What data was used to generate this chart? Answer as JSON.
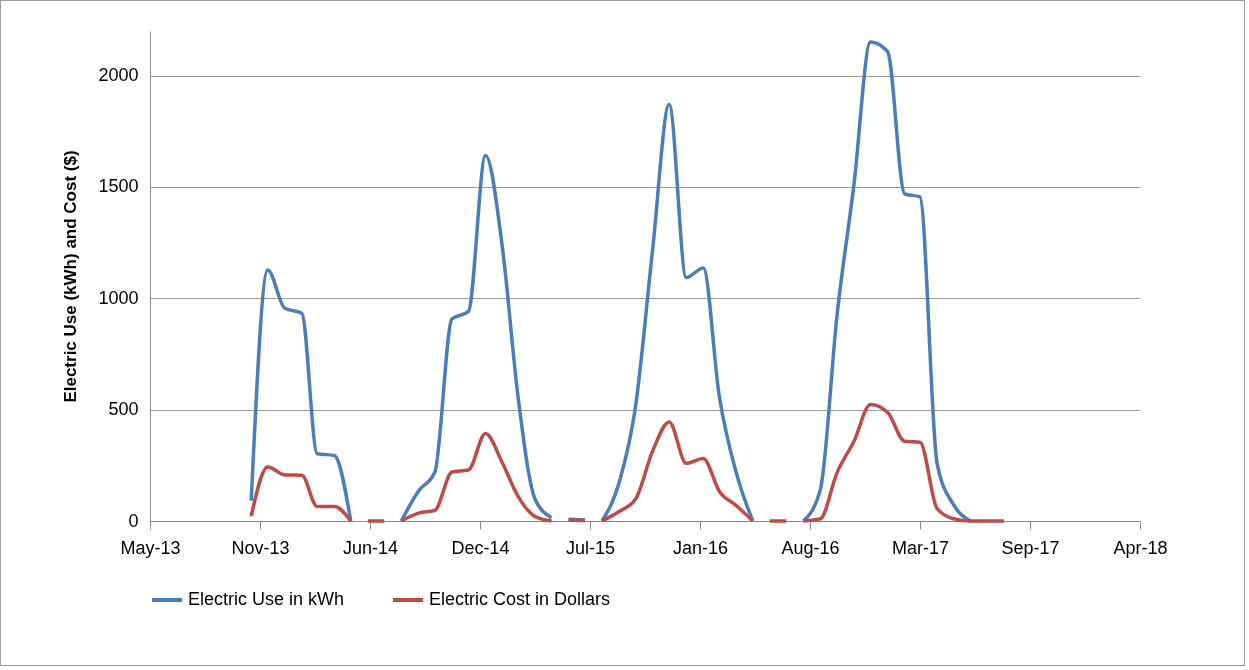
{
  "chart_data": {
    "type": "line",
    "ylabel": "Electric Use (kWh) and Cost ($)",
    "x": [
      "2013-11-01",
      "2013-12-01",
      "2014-01-01",
      "2014-02-01",
      "2014-03-01",
      "2014-04-01",
      "2014-05-01",
      "2014-05-16",
      "2014-06-01",
      "2014-07-01",
      "2014-07-16",
      "2014-08-01",
      "2014-09-01",
      "2014-10-01",
      "2014-11-01",
      "2014-12-01",
      "2015-01-01",
      "2015-02-01",
      "2015-03-01",
      "2015-04-01",
      "2015-05-01",
      "2015-05-16",
      "2015-06-01",
      "2015-07-01",
      "2015-07-16",
      "2015-08-01",
      "2015-09-01",
      "2015-10-01",
      "2015-11-01",
      "2015-12-01",
      "2016-01-01",
      "2016-02-01",
      "2016-03-01",
      "2016-04-01",
      "2016-05-01",
      "2016-05-16",
      "2016-06-01",
      "2016-07-01",
      "2016-07-16",
      "2016-08-01",
      "2016-09-01",
      "2016-10-01",
      "2016-11-01",
      "2016-12-01",
      "2017-01-01",
      "2017-02-01",
      "2017-03-01",
      "2017-04-01",
      "2017-05-01",
      "2017-06-01",
      "2017-07-01",
      "2017-08-01"
    ],
    "series": [
      {
        "name": "Electric Use in kWh",
        "color": "#4a7ebb",
        "values": [
          91,
          1127,
          955,
          933,
          302,
          294,
          0,
          null,
          null,
          null,
          null,
          0,
          134,
          220,
          907,
          941,
          1641,
          1222,
          561,
          99,
          15,
          null,
          8,
          5,
          null,
          0,
          173,
          518,
          1222,
          1870,
          1093,
          1136,
          561,
          216,
          0,
          null,
          null,
          null,
          null,
          0,
          143,
          920,
          1512,
          2151,
          2108,
          1469,
          1455,
          260,
          73,
          0,
          null,
          null
        ]
      },
      {
        "name": "Electric Cost in Dollars",
        "color": "#be4b48",
        "values": [
          22,
          242,
          207,
          205,
          65,
          65,
          0,
          null,
          0,
          0,
          null,
          0,
          35,
          48,
          220,
          229,
          393,
          259,
          112,
          20,
          0,
          null,
          3,
          2,
          null,
          0,
          43,
          99,
          315,
          445,
          259,
          281,
          134,
          69,
          0,
          null,
          0,
          0,
          null,
          0,
          10,
          216,
          358,
          523,
          488,
          358,
          354,
          56,
          10,
          0,
          0,
          0
        ]
      }
    ],
    "xlim": [
      "2013-05-01",
      "2018-04-05"
    ],
    "xticks": [
      {
        "value": "2013-05-01",
        "label": "May-13"
      },
      {
        "value": "2013-11-17",
        "label": "Nov-13"
      },
      {
        "value": "2014-06-05",
        "label": "Jun-14"
      },
      {
        "value": "2014-12-22",
        "label": "Dec-14"
      },
      {
        "value": "2015-07-10",
        "label": "Jul-15"
      },
      {
        "value": "2016-01-26",
        "label": "Jan-16"
      },
      {
        "value": "2016-08-13",
        "label": "Aug-16"
      },
      {
        "value": "2017-03-01",
        "label": "Mar-17"
      },
      {
        "value": "2017-09-17",
        "label": "Sep-17"
      },
      {
        "value": "2018-04-05",
        "label": "Apr-18"
      }
    ],
    "ylim": [
      0,
      2200
    ],
    "yticks": [
      0,
      500,
      1000,
      1500,
      2000
    ],
    "grid": "y",
    "legend": "bottom",
    "marker": "none",
    "line_style": "solid"
  }
}
